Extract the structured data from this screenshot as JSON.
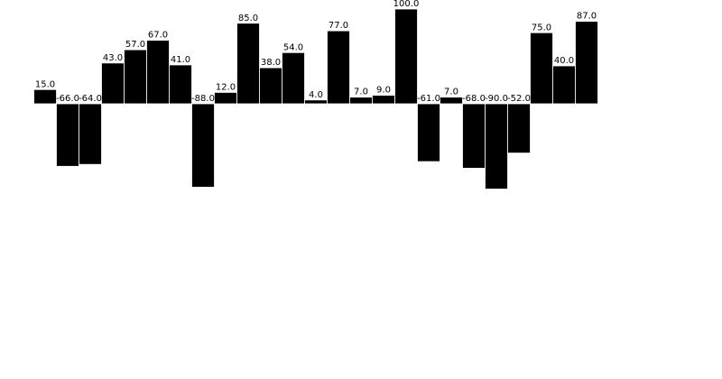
{
  "chart_data": {
    "type": "bar",
    "values": [
      15.0,
      -66.0,
      -64.0,
      43.0,
      57.0,
      67.0,
      41.0,
      -88.0,
      12.0,
      85.0,
      38.0,
      54.0,
      4.0,
      77.0,
      7.0,
      9.0,
      100.0,
      -61.0,
      7.0,
      -68.0,
      -90.0,
      -52.0,
      75.0,
      40.0,
      87.0
    ],
    "data_labels": [
      "15.0",
      "-66.0",
      "-64.0",
      "43.0",
      "57.0",
      "67.0",
      "41.0",
      "-88.0",
      "12.0",
      "85.0",
      "38.0",
      "54.0",
      "4.0",
      "77.0",
      "7.0",
      "9.0",
      "100.0",
      "-61.0",
      "7.0",
      "-68.0",
      "-90.0",
      "-52.0",
      "75.0",
      "40.0",
      "87.0"
    ],
    "ylim": [
      -90,
      100
    ],
    "grid": false,
    "legend": "none",
    "bar_color": "#000000",
    "bar_edge_color": "#ffffff"
  }
}
